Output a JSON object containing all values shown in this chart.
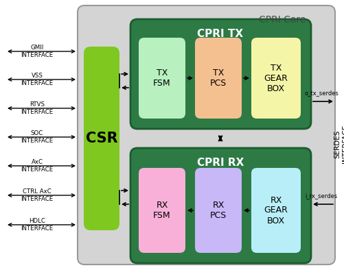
{
  "title": "CPRI Core",
  "bg_color": "#d4d4d4",
  "outer_bg": "#ffffff",
  "csr_color": "#7ec820",
  "cpri_tx_bg": "#2d7a45",
  "cpri_rx_bg": "#2d7a45",
  "cpri_tx_border": "#1a5c2e",
  "cpri_rx_border": "#1a5c2e",
  "tx_fsm_color": "#b8f0c0",
  "tx_pcs_color": "#f5c090",
  "tx_gear_color": "#f5f5a8",
  "rx_fsm_color": "#f8b0d8",
  "rx_pcs_color": "#c8b8f8",
  "rx_gear_color": "#b8eef8",
  "left_labels": [
    "GMII\nINTERFACE",
    "VSS\nINTERFACE",
    "RTVS\nINTERFACE",
    "SOC\nINTERFACE",
    "AxC\nINTERFACE",
    "CTRL AxC\nINTERFACE",
    "HDLC\nINTERFACE"
  ],
  "o_tx_serdes": "o_tx_serdes",
  "i_rx_serdes": "i_rx_serdes",
  "serdes_label": "SERDES\nINTERFACE"
}
